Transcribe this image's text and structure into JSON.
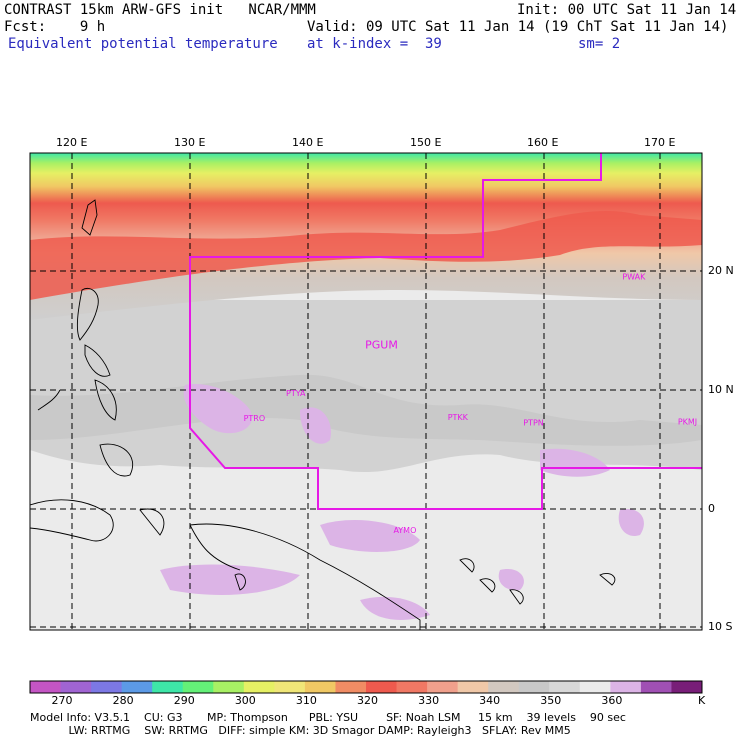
{
  "header": {
    "line1_left": "CONTRAST 15km ARW-GFS init   NCAR/MMM",
    "line1_right": "Init: 00 UTC Sat 11 Jan 14",
    "line2_left": "Fcst:    9 h",
    "line2_right": "Valid: 09 UTC Sat 11 Jan 14 (19 ChT Sat 11 Jan 14)",
    "line3_left": "Equivalent potential temperature",
    "line3_mid": "at k-index =  39",
    "line3_right": "sm= 2"
  },
  "map": {
    "lon_labels": [
      "120 E",
      "130 E",
      "140 E",
      "150 E",
      "160 E",
      "170 E"
    ],
    "lat_labels": [
      "20 N",
      "10 N",
      "0",
      "10 S"
    ],
    "stations": [
      {
        "name": "PWAK",
        "lon": 166.6,
        "lat": 19.3
      },
      {
        "name": "PGUM",
        "lon": 144.8,
        "lat": 13.5
      },
      {
        "name": "PTYA",
        "lon": 138.1,
        "lat": 9.5
      },
      {
        "name": "PTRO",
        "lon": 134.5,
        "lat": 7.4
      },
      {
        "name": "PTKK",
        "lon": 151.8,
        "lat": 7.5
      },
      {
        "name": "PTPN",
        "lon": 158.2,
        "lat": 7.0
      },
      {
        "name": "PKMJ",
        "lon": 171.3,
        "lat": 7.1
      },
      {
        "name": "AYMO",
        "lon": 147.2,
        "lat": -2.0
      }
    ],
    "colors": {
      "domain_boundary": "#e619e6",
      "station_label": "#e619e6",
      "grid": "#000000"
    }
  },
  "colorbar": {
    "unit": "K",
    "tick_labels": [
      "270",
      "280",
      "290",
      "300",
      "310",
      "320",
      "330",
      "340",
      "350",
      "360"
    ],
    "colors": [
      "#c455c4",
      "#a064d2",
      "#7c78e4",
      "#5c9ae6",
      "#3ee6a8",
      "#64f078",
      "#a8f064",
      "#e6f064",
      "#f0e678",
      "#f0c864",
      "#f08c64",
      "#ee5a4e",
      "#f07864",
      "#f0a08c",
      "#f0c8a8",
      "#d2c8c0",
      "#c8c8c8",
      "#d8d8d8",
      "#ebebeb",
      "#dcb4e6",
      "#a050b4",
      "#781e78"
    ]
  },
  "model_info": {
    "line1": "Model Info: V3.5.1    CU: G3       MP: Thompson      PBL: YSU        SF: Noah LSM     15 km    39 levels    90 sec",
    "line2": "           LW: RRTMG    SW: RRTMG   DIFF: simple KM: 3D Smagor DAMP: Rayleigh3   SFLAY: Rev MM5"
  }
}
